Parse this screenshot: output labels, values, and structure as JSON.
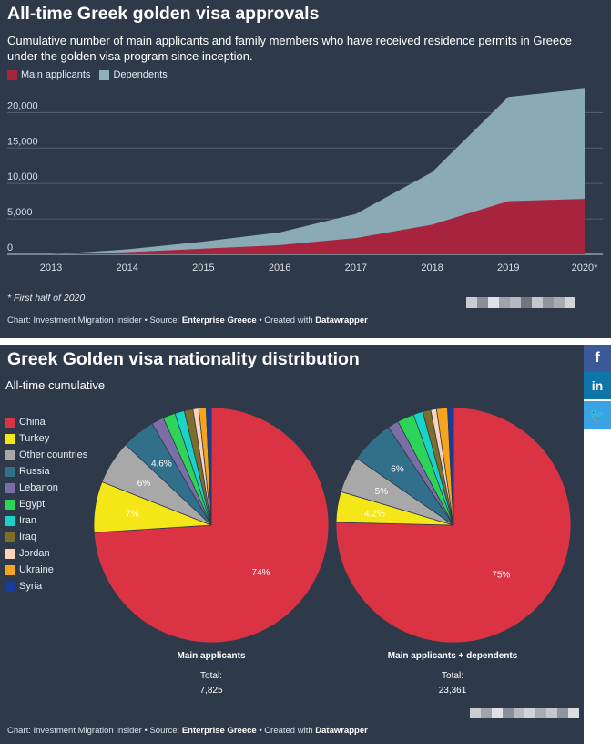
{
  "panel1": {
    "title": "All-time Greek golden visa approvals",
    "subtitle": "Cumulative number of main applicants and family members who have received residence permits in Greece under the golden visa program since inception.",
    "legend": [
      {
        "label": "Main applicants",
        "color": "#a8243e"
      },
      {
        "label": "Dependents",
        "color": "#8fb0bb"
      }
    ],
    "note": "* First half of 2020",
    "source_prefix": "Chart: Investment Migration Insider • Source: ",
    "source_name": "Enterprise Greece",
    "source_mid": " • Created with ",
    "source_tool": "Datawrapper"
  },
  "panel2": {
    "title": "Greek Golden visa nationality distribution",
    "subtitle": "All-time cumulative",
    "legend": [
      {
        "label": "China",
        "color": "#d93344"
      },
      {
        "label": "Turkey",
        "color": "#f5e617"
      },
      {
        "label": "Other countries",
        "color": "#a8a8a8"
      },
      {
        "label": "Russia",
        "color": "#31708a"
      },
      {
        "label": "Lebanon",
        "color": "#7b6ea6"
      },
      {
        "label": "Egypt",
        "color": "#2ed35a"
      },
      {
        "label": "Iran",
        "color": "#19d3c8"
      },
      {
        "label": "Iraq",
        "color": "#7d6e2c"
      },
      {
        "label": "Jordan",
        "color": "#fbd3bd"
      },
      {
        "label": "Ukraine",
        "color": "#f5a41e"
      },
      {
        "label": "Syria",
        "color": "#1b3a9b"
      }
    ],
    "pie1": {
      "name": "Main applicants",
      "total_label": "Total:",
      "total": "7,825"
    },
    "pie2": {
      "name": "Main applicants + dependents",
      "total_label": "Total:",
      "total": "23,361"
    },
    "source_prefix": "Chart: Investment Migration Insider • Source: ",
    "source_name": "Enterprise Greece",
    "source_mid": " • Created with ",
    "source_tool": "Datawrapper"
  },
  "social": {
    "facebook": "f",
    "linkedin": "in",
    "twitter": "🐦"
  },
  "chart_data": [
    {
      "type": "area",
      "title": "All-time Greek golden visa approvals",
      "x": [
        "2013",
        "2014",
        "2015",
        "2016",
        "2017",
        "2018",
        "2019",
        "2020*"
      ],
      "series": [
        {
          "name": "Main applicants",
          "values": [
            0,
            300,
            800,
            1300,
            2300,
            4200,
            7500,
            7825
          ]
        },
        {
          "name": "Dependents",
          "values": [
            0,
            400,
            1000,
            1800,
            3400,
            7400,
            14700,
            15536
          ]
        }
      ],
      "stacked": true,
      "ylim": [
        0,
        23000
      ],
      "yticks": [
        0,
        5000,
        10000,
        15000,
        20000
      ],
      "ytick_labels": [
        "0",
        "5,000",
        "10,000",
        "15,000",
        "20,000"
      ],
      "grid": true
    },
    {
      "type": "pie",
      "title": "Main applicants",
      "categories": [
        "China",
        "Turkey",
        "Other countries",
        "Russia",
        "Lebanon",
        "Egypt",
        "Iran",
        "Iraq",
        "Jordan",
        "Ukraine",
        "Syria"
      ],
      "values": [
        74,
        7,
        6,
        4.6,
        1.7,
        1.7,
        1.3,
        1.2,
        0.8,
        1.0,
        0.7
      ],
      "labels": [
        "74%",
        "7%",
        "6%",
        "4.6%",
        "",
        "",
        "",
        "",
        "",
        "",
        ""
      ]
    },
    {
      "type": "pie",
      "title": "Main applicants + dependents",
      "categories": [
        "China",
        "Turkey",
        "Other countries",
        "Russia",
        "Lebanon",
        "Egypt",
        "Iran",
        "Iraq",
        "Jordan",
        "Ukraine",
        "Syria"
      ],
      "values": [
        75,
        4.2,
        5,
        6,
        1.5,
        2.3,
        1.3,
        1.1,
        0.8,
        1.5,
        0.8
      ],
      "labels": [
        "75%",
        "4.2%",
        "5%",
        "6%",
        "",
        "",
        "",
        "",
        "",
        "",
        ""
      ]
    }
  ]
}
